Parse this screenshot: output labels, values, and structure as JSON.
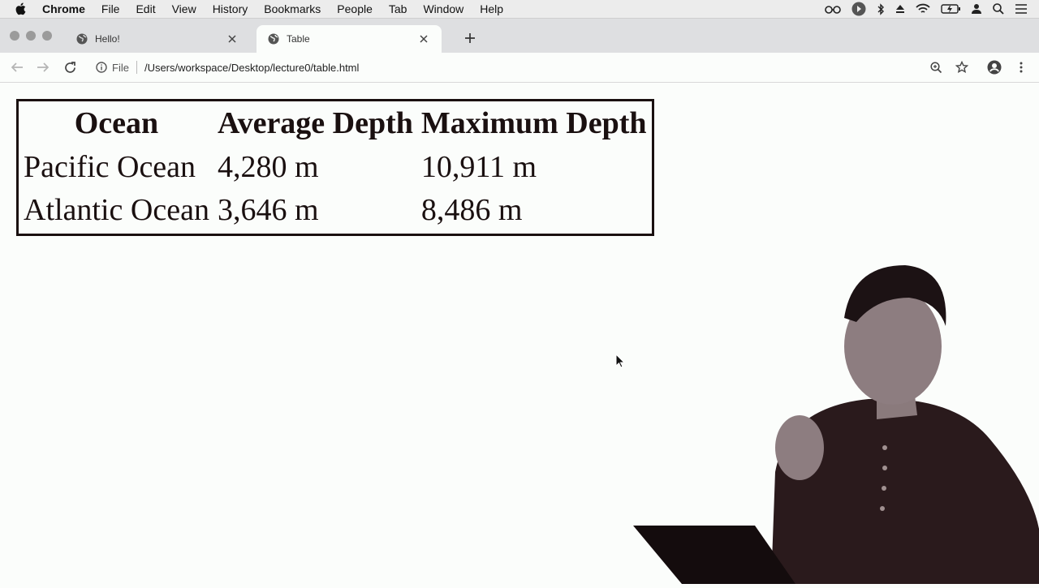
{
  "menubar": {
    "app_name": "Chrome",
    "items": [
      "File",
      "Edit",
      "View",
      "History",
      "Bookmarks",
      "People",
      "Tab",
      "Window",
      "Help"
    ]
  },
  "tabs": [
    {
      "title": "Hello!",
      "active": false
    },
    {
      "title": "Table",
      "active": true
    }
  ],
  "toolbar": {
    "scheme_label": "File",
    "url": "/Users/workspace/Desktop/lecture0/table.html"
  },
  "table": {
    "headers": [
      "Ocean",
      "Average Depth",
      "Maximum Depth"
    ],
    "rows": [
      [
        "Pacific Ocean",
        "4,280 m",
        "10,911 m"
      ],
      [
        "Atlantic Ocean",
        "3,646 m",
        "8,486 m"
      ]
    ]
  },
  "colors": {
    "page_background": "#fbfdfb",
    "tab_strip": "#dedfe1",
    "menubar": "#ececec",
    "text_dark": "#1a1010"
  }
}
